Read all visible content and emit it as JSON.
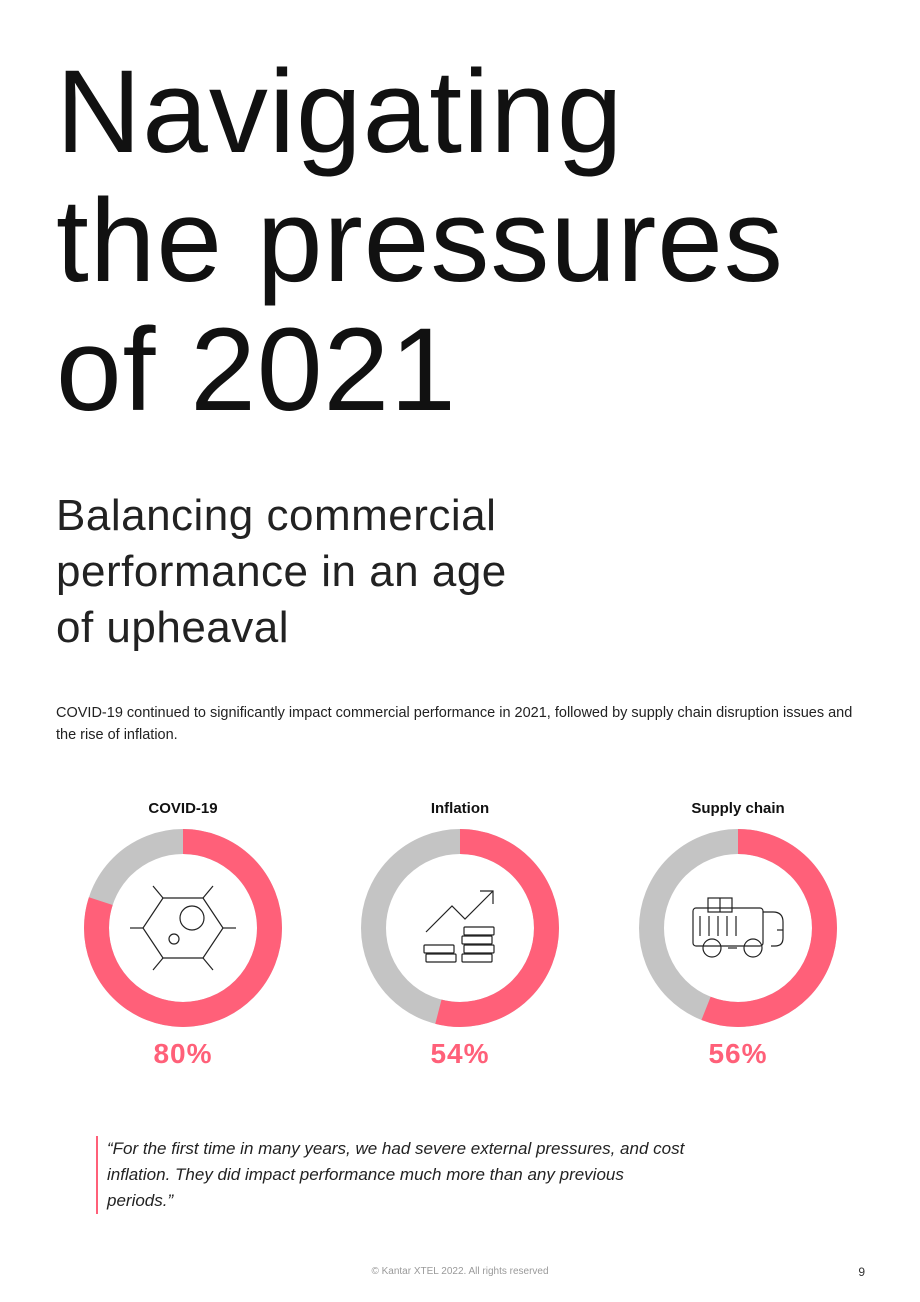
{
  "title": {
    "line1": "Navigating",
    "line2": "the pressures",
    "line3": "of 2021"
  },
  "subtitle": {
    "line1": "Balancing commercial",
    "line2": "performance in an age",
    "line3": "of upheaval"
  },
  "intro": "COVID-19 continued to significantly impact commercial performance in 2021, followed by supply chain disruption issues and the rise of inflation.",
  "chart_data": {
    "type": "pie",
    "title": "",
    "unit": "%",
    "colors": {
      "value": "#ff6079",
      "remainder": "#c4c4c4"
    },
    "categories": [
      "COVID-19",
      "Inflation",
      "Supply chain"
    ],
    "values": [
      80,
      54,
      56
    ],
    "labels": [
      "80%",
      "54%",
      "56%"
    ],
    "icons": [
      "virus-icon",
      "rising-coins-icon",
      "truck-icon"
    ]
  },
  "quote": "“For the first time in many years, we had severe external pressures, and cost inflation. They did impact performance much more than any previous periods.”",
  "footer": "© Kantar XTEL 2022. All rights reserved",
  "page_number": "9"
}
